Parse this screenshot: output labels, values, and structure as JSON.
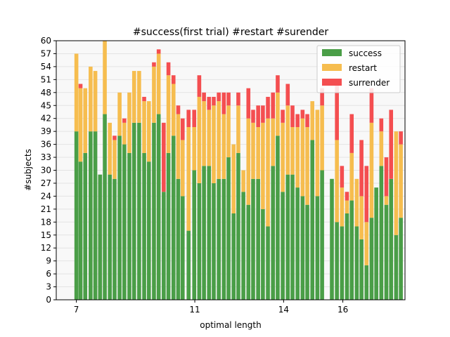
{
  "chart_data": {
    "type": "bar",
    "stacked": true,
    "title": "#success(first trial) #restart #surender",
    "xlabel": "optimal length",
    "ylabel": "#subjects",
    "ylim": [
      0,
      60
    ],
    "y_ticks": [
      0,
      3,
      6,
      9,
      12,
      15,
      18,
      21,
      24,
      27,
      30,
      33,
      36,
      39,
      42,
      45,
      48,
      51,
      54,
      57,
      60
    ],
    "x_ticks": [
      7,
      11,
      14,
      16
    ],
    "xlim": [
      6.32,
      18.1
    ],
    "grid": "horizontal",
    "legend_position": "top-right",
    "colors": {
      "success": "#4a9e47",
      "restart": "#f6bd4f",
      "surrender": "#f44e50",
      "plot_background": "#f8f8f8",
      "grid": "#e3e3e3"
    },
    "legend": {
      "success": "success",
      "restart": "restart",
      "surrender": "surrender"
    },
    "x": [
      7.0,
      7.14,
      7.3,
      7.48,
      7.64,
      7.8,
      7.96,
      8.13,
      8.29,
      8.46,
      8.62,
      8.79,
      8.95,
      9.12,
      9.29,
      9.45,
      9.62,
      9.78,
      9.95,
      10.11,
      10.28,
      10.44,
      10.59,
      10.79,
      10.98,
      11.15,
      11.31,
      11.48,
      11.64,
      11.81,
      11.98,
      12.14,
      12.31,
      12.47,
      12.64,
      12.81,
      12.97,
      13.14,
      13.3,
      13.47,
      13.64,
      13.8,
      13.97,
      14.14,
      14.3,
      14.47,
      14.64,
      14.8,
      14.97,
      15.14,
      15.3,
      15.47,
      15.63,
      15.8,
      15.97,
      16.14,
      16.3,
      16.47,
      16.63,
      16.8,
      16.97,
      17.13,
      17.3,
      17.47,
      17.63,
      17.8,
      17.96
    ],
    "series": [
      {
        "name": "success",
        "values": [
          39,
          32,
          34,
          39,
          39,
          29,
          43,
          29,
          28,
          38,
          36,
          34,
          41,
          41,
          34,
          32,
          41,
          43,
          25,
          34,
          38,
          28,
          24,
          16,
          30,
          27,
          31,
          31,
          27,
          28,
          28,
          33,
          20,
          34,
          25,
          22,
          28,
          28,
          21,
          17,
          31,
          38,
          25,
          29,
          29,
          26,
          24,
          22,
          37,
          24,
          30,
          0,
          28,
          18,
          17,
          20,
          23,
          17,
          14,
          8,
          19,
          26,
          31,
          22,
          28,
          15,
          19
        ]
      },
      {
        "name": "restart",
        "values": [
          18,
          17,
          15,
          15,
          14,
          0,
          17,
          12,
          9,
          10,
          5,
          14,
          12,
          12,
          12,
          14,
          13,
          14,
          0,
          18,
          12,
          15,
          13,
          24,
          10,
          20,
          15,
          13,
          18,
          18,
          15,
          12,
          16,
          11,
          5,
          20,
          13,
          12,
          20,
          25,
          11,
          10,
          16,
          16,
          11,
          14,
          18,
          18,
          9,
          20,
          15,
          0,
          0,
          19,
          9,
          3,
          11,
          11,
          10,
          10,
          22,
          0,
          8,
          2,
          0,
          24,
          17
        ]
      },
      {
        "name": "surrender",
        "values": [
          0,
          1,
          0,
          0,
          0,
          0,
          0,
          0,
          1,
          0,
          1,
          0,
          0,
          0,
          1,
          0,
          1,
          1,
          16,
          3,
          2,
          2,
          5,
          4,
          4,
          5,
          2,
          3,
          2,
          2,
          5,
          3,
          0,
          3,
          0,
          7,
          3,
          5,
          4,
          5,
          6,
          4,
          3,
          5,
          5,
          3,
          2,
          3,
          0,
          0,
          4,
          0,
          0,
          14,
          5,
          2,
          9,
          0,
          13,
          13,
          8,
          0,
          3,
          9,
          16,
          0,
          3
        ]
      }
    ]
  }
}
